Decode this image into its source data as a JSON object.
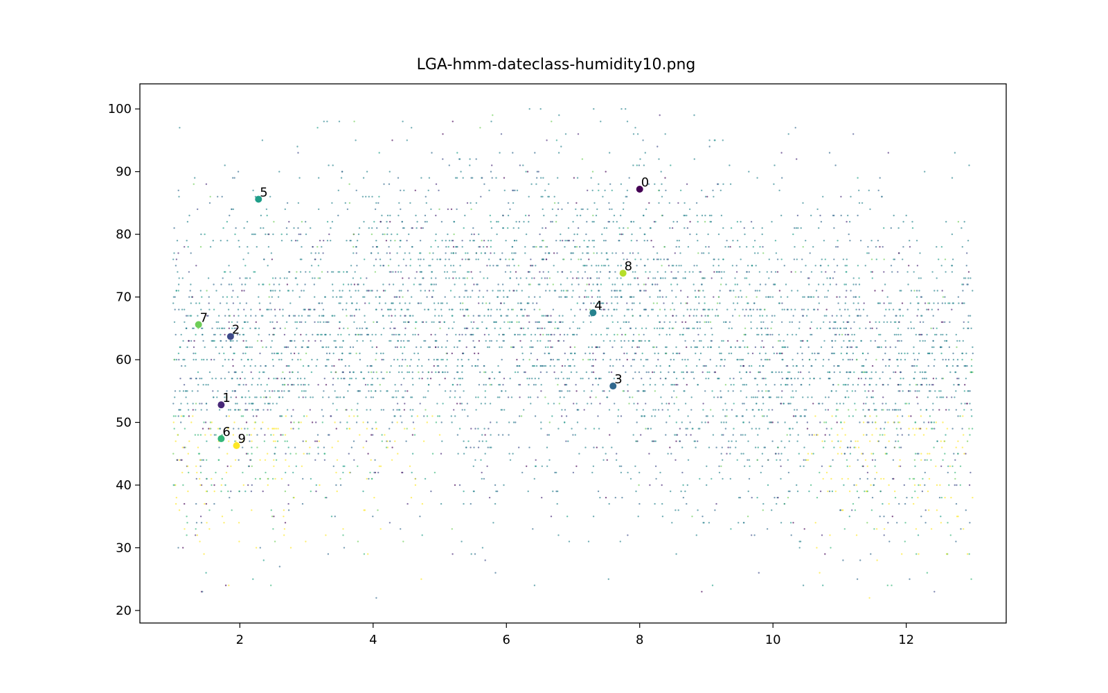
{
  "chart_data": {
    "type": "scatter",
    "title": "LGA-hmm-dateclass-humidity10.png",
    "xlabel": "",
    "ylabel": "",
    "xlim": [
      0.5,
      13.5
    ],
    "ylim": [
      18,
      104
    ],
    "x_ticks": [
      2,
      4,
      6,
      8,
      10,
      12
    ],
    "y_ticks": [
      20,
      30,
      40,
      50,
      60,
      70,
      80,
      90,
      100
    ],
    "grid": false,
    "legend": "none",
    "colormap": "viridis",
    "class_colors": [
      "#440154",
      "#482878",
      "#3e4989",
      "#31688e",
      "#26828e",
      "#1f9e89",
      "#35b779",
      "#6ece58",
      "#b5de2b",
      "#fde725"
    ],
    "background_point_density": "dense",
    "centroids": [
      {
        "label": "0",
        "x": 8.0,
        "y": 87.2,
        "class": 0
      },
      {
        "label": "1",
        "x": 1.72,
        "y": 52.8,
        "class": 1
      },
      {
        "label": "2",
        "x": 1.86,
        "y": 63.7,
        "class": 2
      },
      {
        "label": "3",
        "x": 7.6,
        "y": 55.8,
        "class": 3
      },
      {
        "label": "4",
        "x": 7.3,
        "y": 67.5,
        "class": 4
      },
      {
        "label": "5",
        "x": 2.28,
        "y": 85.6,
        "class": 5
      },
      {
        "label": "6",
        "x": 1.72,
        "y": 47.4,
        "class": 6
      },
      {
        "label": "7",
        "x": 1.38,
        "y": 65.6,
        "class": 7
      },
      {
        "label": "8",
        "x": 7.75,
        "y": 73.8,
        "class": 8
      },
      {
        "label": "9",
        "x": 1.95,
        "y": 46.3,
        "class": 9
      }
    ]
  }
}
